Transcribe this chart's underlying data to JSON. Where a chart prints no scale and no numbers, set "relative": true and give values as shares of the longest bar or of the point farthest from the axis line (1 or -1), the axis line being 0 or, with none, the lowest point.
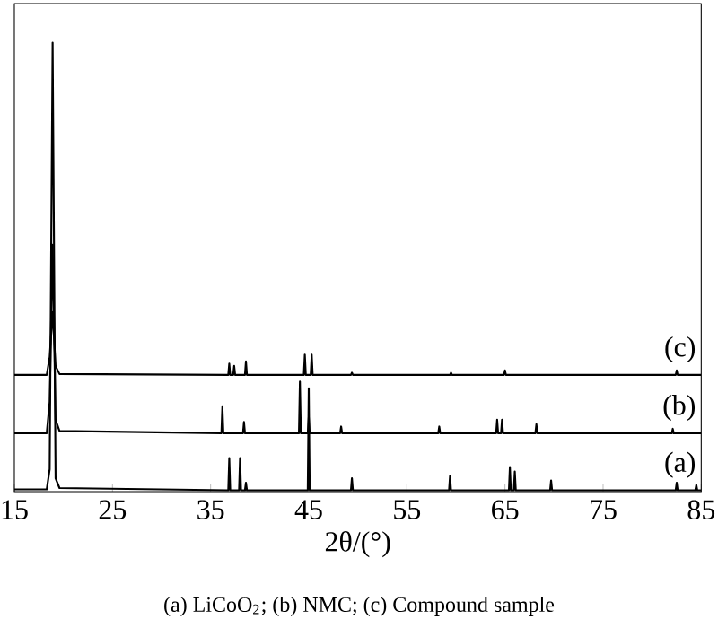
{
  "chart_data": {
    "type": "line",
    "relative": true,
    "xlabel": "2θ/(°)",
    "xlim": [
      15,
      85
    ],
    "xticks": [
      15,
      25,
      35,
      45,
      55,
      65,
      75,
      85
    ],
    "annotations": [
      "(a)  LiCoO$_{2}$;  (b)  NMC; (c) Compound sample"
    ],
    "series": [
      {
        "name": "(a)",
        "color": "#000000",
        "x": [
          15,
          18.3,
          18.6,
          18.9,
          19.2,
          19.6,
          36.8,
          36.9,
          37.0,
          37.9,
          38.0,
          38.1,
          38.5,
          38.6,
          38.7,
          44.9,
          45.0,
          45.1,
          49.3,
          49.4,
          49.5,
          59.3,
          59.4,
          59.5,
          65.4,
          65.5,
          65.6,
          65.9,
          66.0,
          66.1,
          69.6,
          69.7,
          69.8,
          82.4,
          82.5,
          82.6,
          84.4,
          84.5,
          84.6,
          85
        ],
        "values": [
          0.005,
          0.005,
          0.05,
          1.0,
          0.03,
          0.008,
          0.003,
          0.075,
          0.003,
          0.003,
          0.075,
          0.003,
          0.003,
          0.02,
          0.003,
          0.003,
          0.23,
          0.003,
          0.003,
          0.03,
          0.003,
          0.003,
          0.035,
          0.003,
          0.003,
          0.055,
          0.003,
          0.003,
          0.045,
          0.003,
          0.003,
          0.025,
          0.003,
          0.003,
          0.02,
          0.003,
          0.003,
          0.015,
          0.003,
          0.003
        ]
      },
      {
        "name": "(b)",
        "color": "#000000",
        "x": [
          15,
          18.3,
          18.6,
          18.9,
          19.2,
          19.6,
          36.1,
          36.2,
          36.3,
          38.3,
          38.4,
          38.5,
          44.0,
          44.1,
          44.2,
          44.9,
          45.0,
          45.1,
          48.2,
          48.3,
          48.4,
          58.2,
          58.3,
          58.4,
          64.1,
          64.2,
          64.3,
          64.6,
          64.7,
          64.8,
          68.1,
          68.2,
          68.3,
          82.0,
          82.1,
          82.2,
          85
        ],
        "values": [
          0.13,
          0.13,
          0.2,
          0.55,
          0.16,
          0.135,
          0.13,
          0.19,
          0.13,
          0.13,
          0.155,
          0.13,
          0.13,
          0.245,
          0.13,
          0.13,
          0.165,
          0.13,
          0.13,
          0.145,
          0.13,
          0.13,
          0.145,
          0.13,
          0.13,
          0.16,
          0.13,
          0.13,
          0.16,
          0.13,
          0.13,
          0.15,
          0.13,
          0.13,
          0.14,
          0.13,
          0.13
        ]
      },
      {
        "name": "(c)",
        "color": "#000000",
        "x": [
          15,
          18.3,
          18.6,
          18.9,
          19.2,
          19.6,
          36.8,
          36.9,
          37.0,
          37.3,
          37.4,
          37.5,
          38.5,
          38.6,
          38.7,
          44.5,
          44.6,
          44.7,
          45.2,
          45.3,
          45.4,
          49.3,
          49.4,
          49.5,
          59.4,
          59.5,
          59.6,
          64.9,
          65.0,
          65.1,
          82.4,
          82.5,
          82.6,
          85
        ],
        "values": [
          0.26,
          0.26,
          0.3,
          0.4,
          0.28,
          0.262,
          0.26,
          0.285,
          0.26,
          0.26,
          0.28,
          0.26,
          0.26,
          0.29,
          0.26,
          0.26,
          0.305,
          0.26,
          0.26,
          0.305,
          0.26,
          0.26,
          0.265,
          0.26,
          0.26,
          0.265,
          0.26,
          0.26,
          0.27,
          0.26,
          0.26,
          0.27,
          0.26,
          0.26
        ]
      }
    ]
  }
}
